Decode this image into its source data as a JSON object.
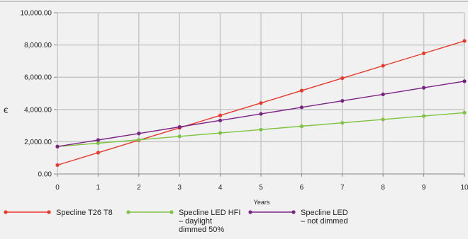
{
  "chart_data": {
    "type": "line",
    "title": "",
    "xlabel": "Years",
    "ylabel": "€",
    "x": [
      0,
      1,
      2,
      3,
      4,
      5,
      6,
      7,
      8,
      9,
      10
    ],
    "xlim": [
      0,
      10
    ],
    "ylim": [
      0,
      10000
    ],
    "y_ticks": [
      "0.00",
      "2,000.00",
      "4,000.00",
      "6,000.00",
      "8,000.00",
      "10,000.00"
    ],
    "x_ticks": [
      "0",
      "1",
      "2",
      "3",
      "4",
      "5",
      "6",
      "7",
      "8",
      "9",
      "10"
    ],
    "grid": true,
    "legend_position": "bottom",
    "series": [
      {
        "name": "Specline T26 T8",
        "color": "#e8392b",
        "legend_lines": [
          "Specline T26 T8"
        ],
        "values": [
          550,
          1320,
          2090,
          2860,
          3630,
          4400,
          5170,
          5940,
          6710,
          7480,
          8250
        ]
      },
      {
        "name": "Specline LED HFI – daylight dimmed 50%",
        "color": "#7dc243",
        "legend_lines": [
          "Specline LED HFI",
          "– daylight",
          "dimmed 50%"
        ],
        "values": [
          1700,
          1910,
          2120,
          2330,
          2540,
          2750,
          2960,
          3170,
          3380,
          3590,
          3800
        ]
      },
      {
        "name": "Specline LED – not dimmed",
        "color": "#7b2384",
        "legend_lines": [
          "Specline LED",
          "– not dimmed"
        ],
        "values": [
          1700,
          2105,
          2510,
          2915,
          3320,
          3725,
          4130,
          4535,
          4940,
          5345,
          5750
        ]
      }
    ]
  }
}
